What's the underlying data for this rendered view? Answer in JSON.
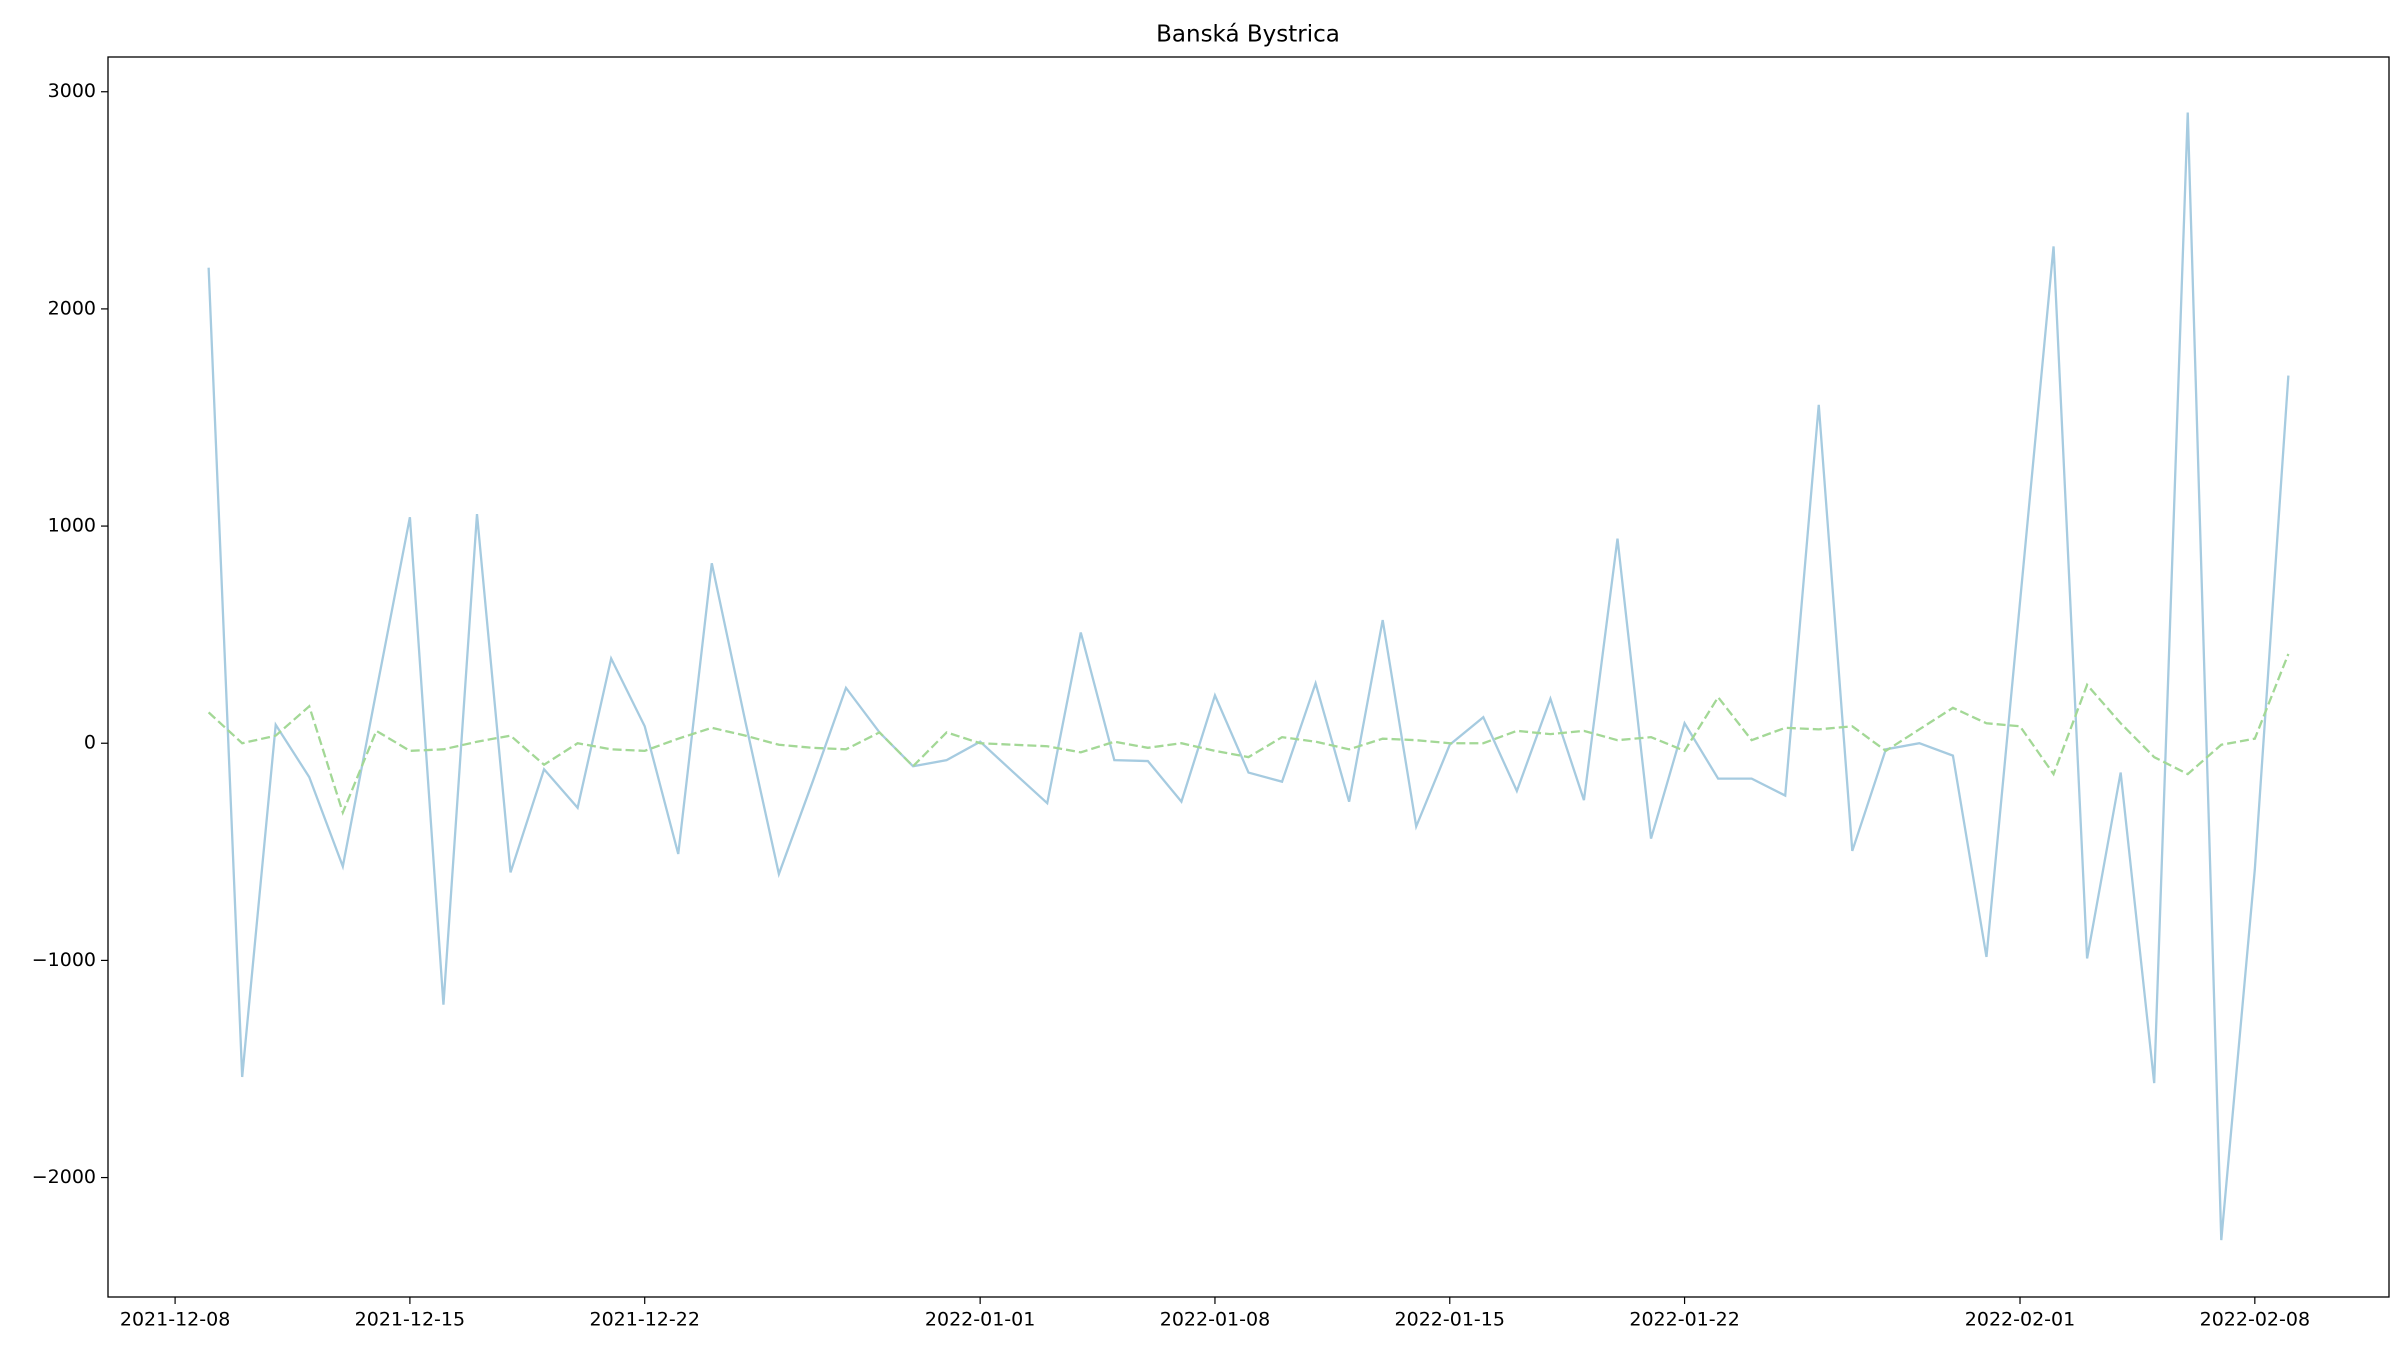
{
  "chart_data": {
    "type": "line",
    "title": "Banská Bystrica",
    "x": [
      "2021-12-09",
      "2021-12-10",
      "2021-12-11",
      "2021-12-12",
      "2021-12-13",
      "2021-12-14",
      "2021-12-15",
      "2021-12-16",
      "2021-12-17",
      "2021-12-18",
      "2021-12-19",
      "2021-12-20",
      "2021-12-21",
      "2021-12-22",
      "2021-12-23",
      "2021-12-24",
      "2021-12-25",
      "2021-12-26",
      "2021-12-27",
      "2021-12-28",
      "2021-12-29",
      "2021-12-30",
      "2021-12-31",
      "2022-01-01",
      "2022-01-02",
      "2022-01-03",
      "2022-01-04",
      "2022-01-05",
      "2022-01-06",
      "2022-01-07",
      "2022-01-08",
      "2022-01-09",
      "2022-01-10",
      "2022-01-11",
      "2022-01-12",
      "2022-01-13",
      "2022-01-14",
      "2022-01-15",
      "2022-01-16",
      "2022-01-17",
      "2022-01-18",
      "2022-01-19",
      "2022-01-20",
      "2022-01-21",
      "2022-01-22",
      "2022-01-23",
      "2022-01-24",
      "2022-01-25",
      "2022-01-26",
      "2022-01-27",
      "2022-01-28",
      "2022-01-29",
      "2022-01-30",
      "2022-01-31",
      "2022-02-01",
      "2022-02-02",
      "2022-02-03",
      "2022-02-04",
      "2022-02-05",
      "2022-02-06",
      "2022-02-07",
      "2022-02-08",
      "2022-02-09"
    ],
    "series": [
      {
        "color": "#a6cbe0",
        "style": "solid",
        "values": [
          2190,
          -1537,
          85,
          -156,
          -567,
          240,
          1041,
          -1204,
          1055,
          -595,
          -120,
          -297,
          390,
          78,
          -510,
          829,
          100,
          -602,
          -180,
          255,
          50,
          -106,
          -78,
          7,
          -135,
          -276,
          510,
          -78,
          -82,
          -269,
          220,
          -135,
          -177,
          276,
          -269,
          567,
          -383,
          -7,
          120,
          -220,
          205,
          -262,
          942,
          -439,
          92,
          -163,
          -163,
          -241,
          1558,
          -496,
          -28,
          0,
          -57,
          -984,
          650,
          2288,
          -991,
          -135,
          -1565,
          2904,
          -2288,
          -581,
          1693
        ]
      },
      {
        "color": "#a3d896",
        "style": "dashed",
        "values": [
          142,
          0,
          35,
          170,
          -319,
          57,
          -35,
          -28,
          7,
          35,
          -99,
          0,
          -28,
          -35,
          21,
          71,
          35,
          -7,
          -21,
          -28,
          50,
          -106,
          50,
          0,
          -7,
          -14,
          -42,
          7,
          -21,
          0,
          -35,
          -64,
          28,
          7,
          -28,
          21,
          14,
          0,
          0,
          57,
          42,
          57,
          14,
          28,
          -35,
          212,
          14,
          71,
          64,
          78,
          -35,
          64,
          163,
          92,
          78,
          -142,
          269,
          92,
          -64,
          -142,
          -7,
          21,
          411
        ]
      }
    ],
    "xlim": [
      "2021-12-06",
      "2022-02-12"
    ],
    "xticks": [
      "2021-12-08",
      "2021-12-15",
      "2021-12-22",
      "2022-01-01",
      "2022-01-08",
      "2022-01-15",
      "2022-01-22",
      "2022-02-01",
      "2022-02-08"
    ],
    "ylim": [
      -2550,
      3160
    ],
    "yticks": [
      {
        "value": -2000,
        "label": "−2000"
      },
      {
        "value": -1000,
        "label": "−1000"
      },
      0,
      1000,
      2000,
      3000
    ],
    "grid": false
  }
}
